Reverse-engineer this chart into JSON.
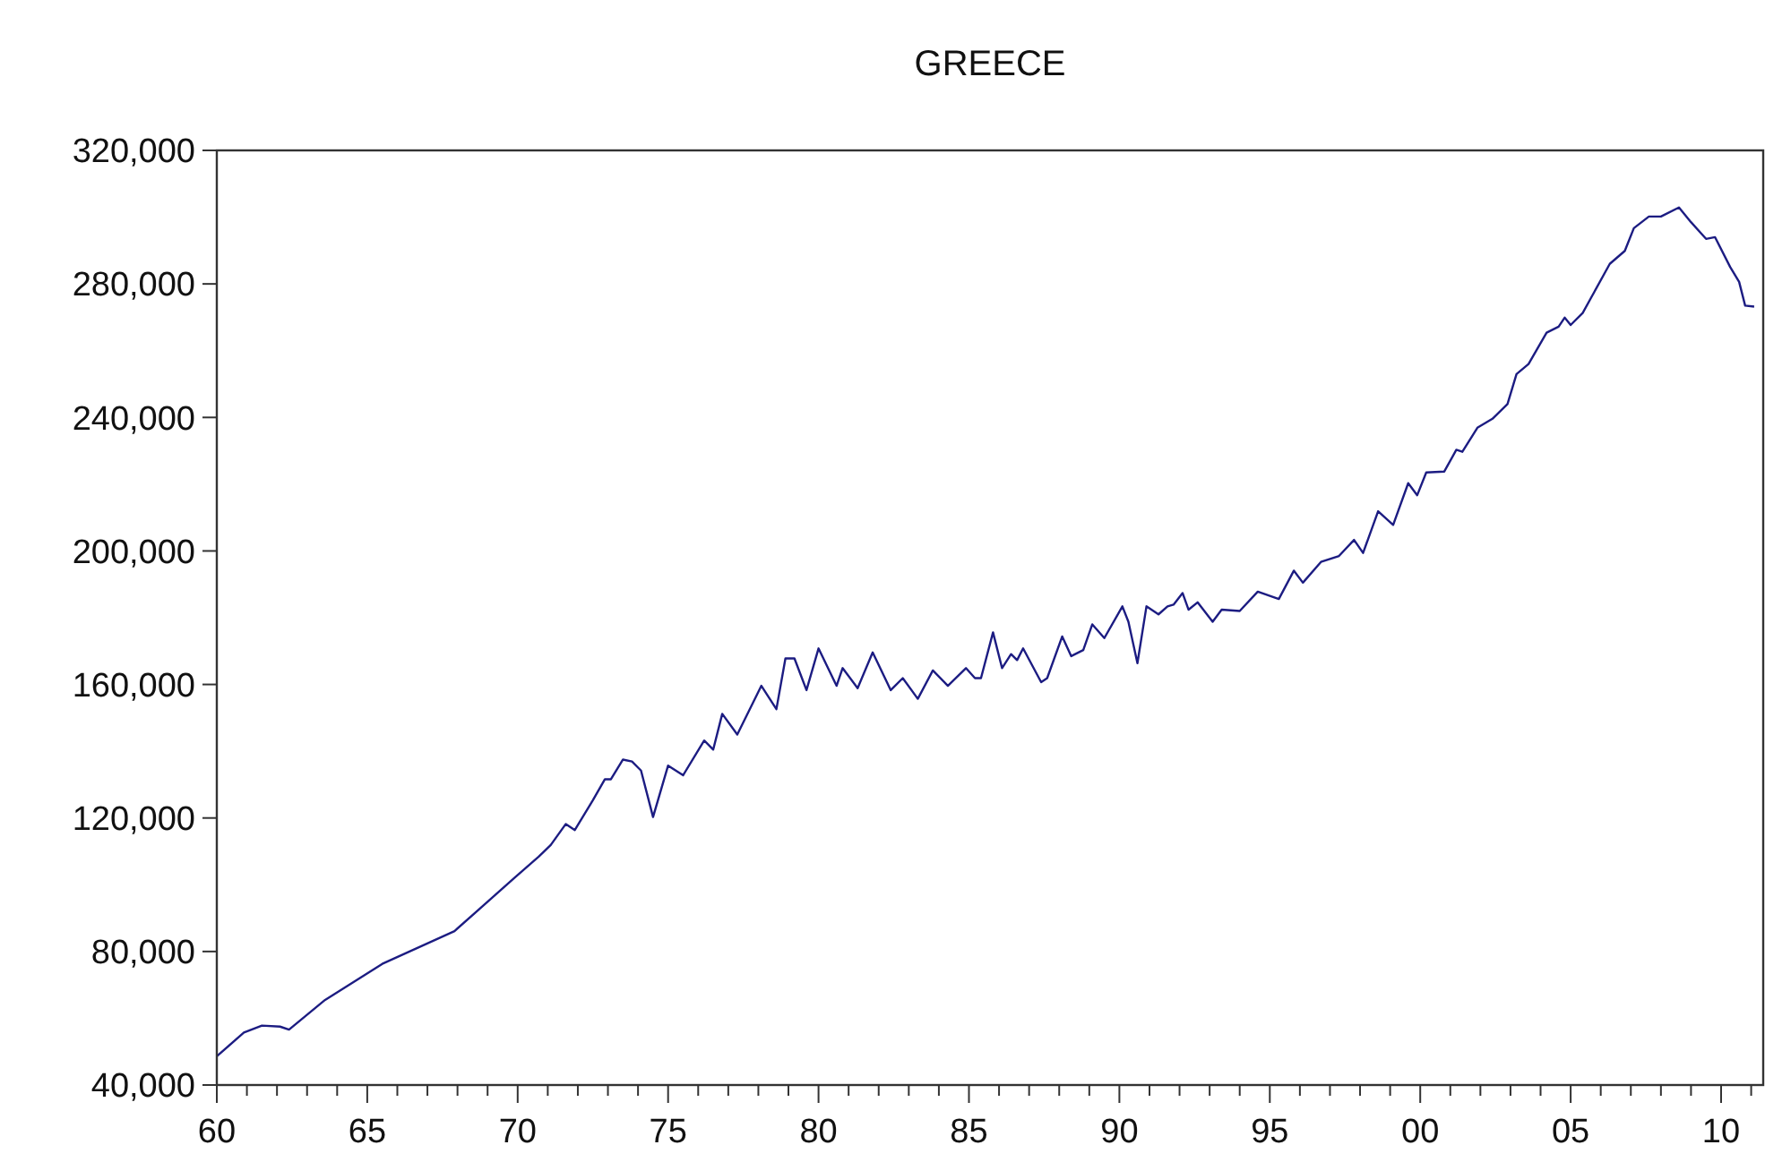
{
  "chart_data": {
    "type": "line",
    "title": "GREECE",
    "xlim": [
      1960,
      2011.4
    ],
    "xticks": [
      {
        "value": 1960,
        "label": "60"
      },
      {
        "value": 1961,
        "label": null
      },
      {
        "value": 1962,
        "label": null
      },
      {
        "value": 1963,
        "label": null
      },
      {
        "value": 1964,
        "label": null
      },
      {
        "value": 1965,
        "label": "65"
      },
      {
        "value": 1966,
        "label": null
      },
      {
        "value": 1967,
        "label": null
      },
      {
        "value": 1968,
        "label": null
      },
      {
        "value": 1969,
        "label": null
      },
      {
        "value": 1970,
        "label": "70"
      },
      {
        "value": 1971,
        "label": null
      },
      {
        "value": 1972,
        "label": null
      },
      {
        "value": 1973,
        "label": null
      },
      {
        "value": 1974,
        "label": null
      },
      {
        "value": 1975,
        "label": "75"
      },
      {
        "value": 1976,
        "label": null
      },
      {
        "value": 1977,
        "label": null
      },
      {
        "value": 1978,
        "label": null
      },
      {
        "value": 1979,
        "label": null
      },
      {
        "value": 1980,
        "label": "80"
      },
      {
        "value": 1981,
        "label": null
      },
      {
        "value": 1982,
        "label": null
      },
      {
        "value": 1983,
        "label": null
      },
      {
        "value": 1984,
        "label": null
      },
      {
        "value": 1985,
        "label": "85"
      },
      {
        "value": 1986,
        "label": null
      },
      {
        "value": 1987,
        "label": null
      },
      {
        "value": 1988,
        "label": null
      },
      {
        "value": 1989,
        "label": null
      },
      {
        "value": 1990,
        "label": "90"
      },
      {
        "value": 1991,
        "label": null
      },
      {
        "value": 1992,
        "label": null
      },
      {
        "value": 1993,
        "label": null
      },
      {
        "value": 1994,
        "label": null
      },
      {
        "value": 1995,
        "label": "95"
      },
      {
        "value": 1996,
        "label": null
      },
      {
        "value": 1997,
        "label": null
      },
      {
        "value": 1998,
        "label": null
      },
      {
        "value": 1999,
        "label": null
      },
      {
        "value": 2000,
        "label": "00"
      },
      {
        "value": 2001,
        "label": null
      },
      {
        "value": 2002,
        "label": null
      },
      {
        "value": 2003,
        "label": null
      },
      {
        "value": 2004,
        "label": null
      },
      {
        "value": 2005,
        "label": "05"
      },
      {
        "value": 2006,
        "label": null
      },
      {
        "value": 2007,
        "label": null
      },
      {
        "value": 2008,
        "label": null
      },
      {
        "value": 2009,
        "label": null
      },
      {
        "value": 2010,
        "label": "10"
      },
      {
        "value": 2011,
        "label": null
      }
    ],
    "ylim": [
      40000,
      320000
    ],
    "yticks": [
      {
        "value": 40000,
        "label": "40,000"
      },
      {
        "value": 80000,
        "label": "80,000"
      },
      {
        "value": 120000,
        "label": "120,000"
      },
      {
        "value": 160000,
        "label": "160,000"
      },
      {
        "value": 200000,
        "label": "200,000"
      },
      {
        "value": 240000,
        "label": "240,000"
      },
      {
        "value": 280000,
        "label": "280,000"
      },
      {
        "value": 320000,
        "label": "320,000"
      }
    ],
    "line_style": "solid",
    "series": [
      {
        "color": "#1c1c82",
        "x": [
          1960.0,
          1960.9,
          1961.5,
          1962.1,
          1962.4,
          1963.6,
          1965.5,
          1967.9,
          1969.9,
          1970.7,
          1971.1,
          1971.6,
          1971.9,
          1972.5,
          1972.9,
          1973.1,
          1973.5,
          1973.8,
          1974.1,
          1974.5,
          1975.0,
          1975.5,
          1976.2,
          1976.5,
          1976.8,
          1977.3,
          1978.1,
          1978.6,
          1978.9,
          1979.2,
          1979.6,
          1980.0,
          1980.6,
          1980.8,
          1981.3,
          1981.8,
          1982.4,
          1982.8,
          1983.3,
          1983.8,
          1984.3,
          1984.9,
          1985.2,
          1985.4,
          1985.8,
          1986.1,
          1986.4,
          1986.6,
          1986.8,
          1987.4,
          1987.6,
          1988.1,
          1988.4,
          1988.8,
          1989.1,
          1989.5,
          1990.1,
          1990.3,
          1990.6,
          1990.9,
          1991.3,
          1991.6,
          1991.8,
          1992.1,
          1992.3,
          1992.6,
          1993.1,
          1993.4,
          1994.0,
          1994.6,
          1995.3,
          1995.8,
          1996.1,
          1996.7,
          1997.3,
          1997.8,
          1998.1,
          1998.6,
          1999.1,
          1999.6,
          1999.9,
          2000.2,
          2000.8,
          2001.2,
          2001.4,
          2001.9,
          2002.4,
          2002.9,
          2003.2,
          2003.6,
          2004.2,
          2004.6,
          2004.8,
          2005.0,
          2005.4,
          2006.3,
          2006.8,
          2007.1,
          2007.6,
          2008.0,
          2008.6,
          2009.0,
          2009.5,
          2009.8,
          2010.3,
          2010.6,
          2010.8,
          2011.1
        ],
        "values": [
          48600,
          55700,
          57800,
          57500,
          56600,
          65500,
          76300,
          86100,
          102100,
          108400,
          111900,
          118200,
          116400,
          125300,
          131600,
          131600,
          137500,
          136900,
          134200,
          120300,
          135700,
          132800,
          143200,
          140500,
          151200,
          145000,
          159600,
          152600,
          167800,
          167800,
          158300,
          170800,
          159600,
          164900,
          158900,
          169600,
          158300,
          161900,
          155700,
          164200,
          159600,
          164900,
          161900,
          161900,
          175600,
          164900,
          169100,
          167300,
          170800,
          160700,
          161900,
          174400,
          168500,
          170300,
          178000,
          173900,
          183400,
          178800,
          166400,
          183400,
          181000,
          183400,
          183900,
          187400,
          182400,
          184600,
          178800,
          182400,
          182000,
          187800,
          185600,
          194100,
          190500,
          196700,
          198500,
          203300,
          199400,
          211900,
          207800,
          220300,
          216700,
          223500,
          223800,
          230300,
          229700,
          236900,
          239600,
          244000,
          253000,
          256000,
          265400,
          267200,
          269900,
          267700,
          271300,
          286000,
          289900,
          296700,
          300200,
          300200,
          302900,
          298500,
          293500,
          294000,
          285100,
          280600,
          273500,
          273200
        ]
      }
    ]
  }
}
